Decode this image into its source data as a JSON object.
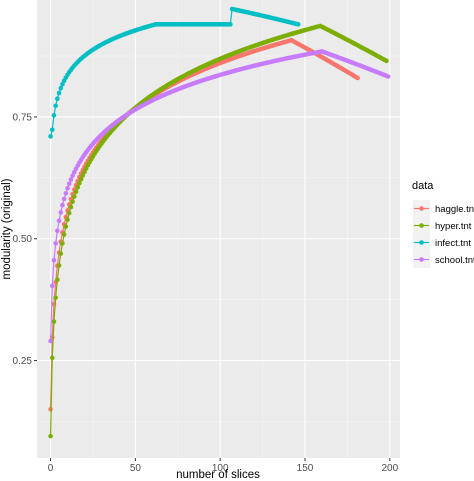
{
  "chart_data": {
    "type": "line",
    "xlabel": "number of slices",
    "ylabel": "modularity (original)",
    "xlim": [
      -8,
      206
    ],
    "ylim": [
      0.05,
      0.99
    ],
    "x_ticks": [
      0,
      50,
      100,
      150,
      200
    ],
    "y_ticks": [
      0.25,
      0.5,
      0.75
    ],
    "x_tick_labels": [
      "0",
      "50",
      "100",
      "150",
      "200"
    ],
    "y_tick_labels": [
      "0.25",
      "0.50",
      "0.75"
    ],
    "grid": true,
    "legend": {
      "title": "data",
      "position": "right"
    },
    "series": [
      {
        "name": "haggle.tnt",
        "color": "#F8766D",
        "n_points": 182,
        "curve": "log",
        "a": 0.15,
        "b": 0.134,
        "c": 0.5,
        "first_y": 0.15,
        "last_y": 0.83
      },
      {
        "name": "hyper.tnt",
        "color": "#7CAE00",
        "n_points": 199,
        "curve": "log",
        "a": 0.095,
        "b": 0.146,
        "c": 0.5,
        "first_y": 0.095,
        "last_y": 0.865
      },
      {
        "name": "infect.tnt",
        "color": "#00BFC4",
        "n_points": 147,
        "curve": "log",
        "a": 0.66,
        "b": 0.058,
        "c": 0.5,
        "first_y": 0.71,
        "last_y": 0.94
      },
      {
        "name": "school.tnt",
        "color": "#C77CFF",
        "n_points": 200,
        "curve": "log",
        "a": 0.29,
        "b": 0.103,
        "c": 0.5,
        "first_y": 0.29,
        "last_y": 0.833
      }
    ]
  }
}
